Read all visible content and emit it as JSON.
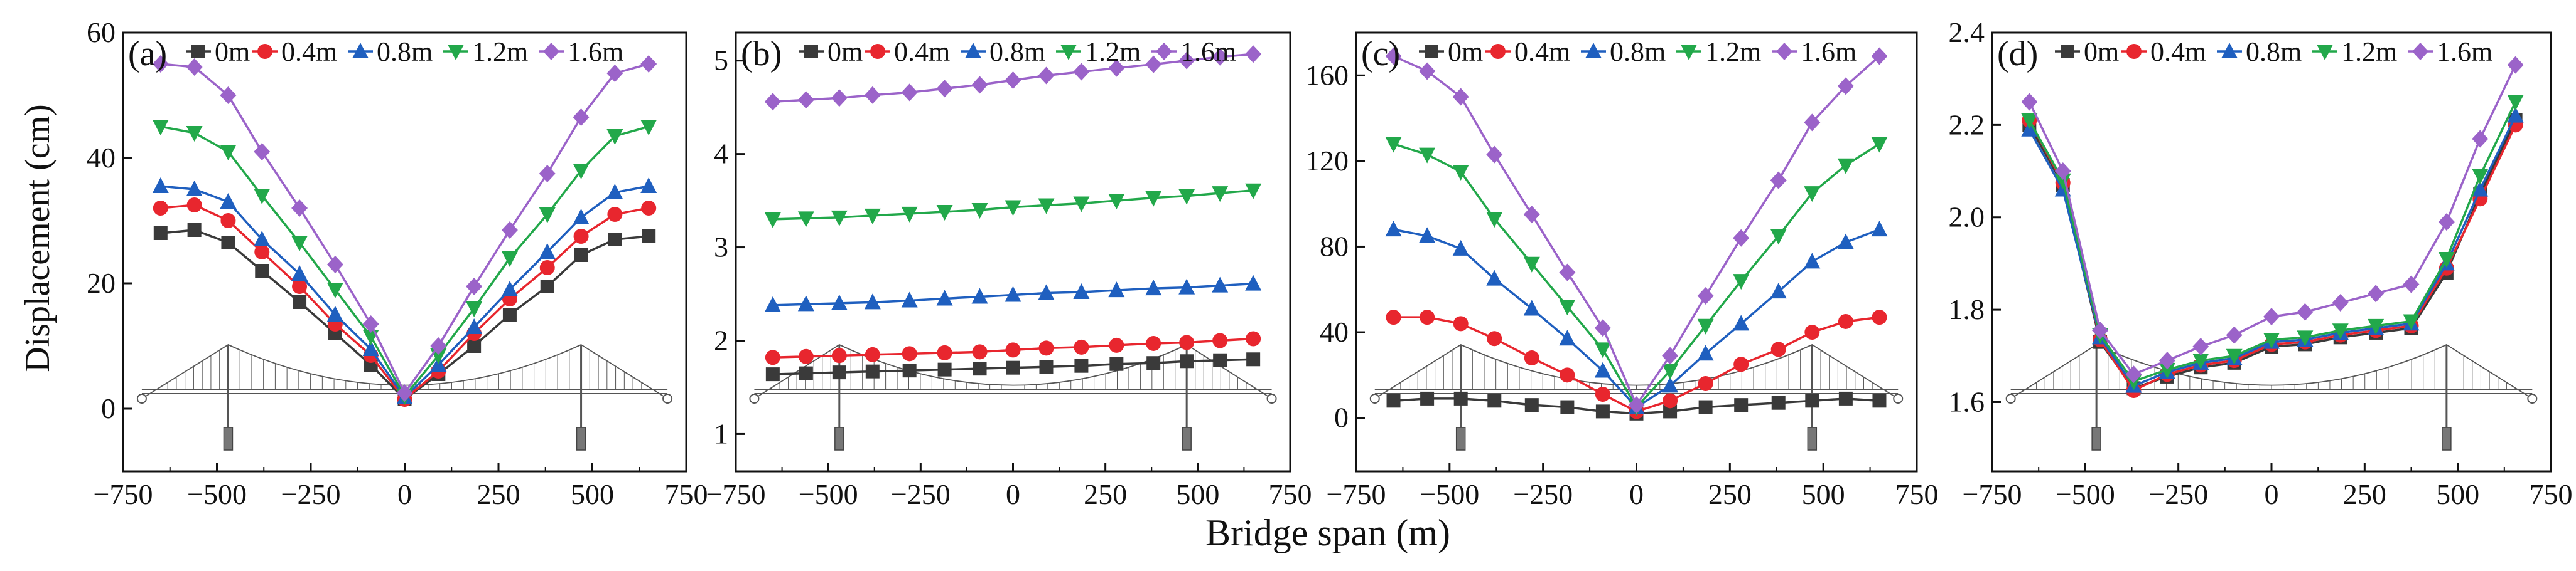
{
  "figure": {
    "ylabel": "Displacement (cm)",
    "xlabel": "Bridge span (m)",
    "x_ticks": [
      "−750",
      "−500",
      "−250",
      "0",
      "250",
      "500",
      "750"
    ],
    "x_tick_values": [
      -750,
      -500,
      -250,
      0,
      250,
      500,
      750
    ],
    "colors": [
      "#3a3a3a",
      "#e8262e",
      "#1f5fbf",
      "#22a84a",
      "#9b63c9"
    ]
  },
  "chart_data": [
    {
      "type": "line",
      "panel_label": "(a)",
      "title": "",
      "xlim": [
        -750,
        750
      ],
      "ylim": [
        -10,
        60
      ],
      "y_ticks": [
        "0",
        "20",
        "40",
        "60"
      ],
      "y_tick_values": [
        0,
        20,
        40,
        60
      ],
      "legend": [
        "0m",
        "0.4m",
        "0.8m",
        "1.2m",
        "1.6m"
      ],
      "x": [
        -650,
        -560,
        -470,
        -380,
        -280,
        -185,
        -90,
        0,
        90,
        185,
        280,
        380,
        470,
        560,
        650
      ],
      "series": [
        {
          "name": "0m",
          "marker": "square",
          "values": [
            28,
            28.5,
            26.5,
            22,
            17,
            12,
            7,
            1.5,
            5.5,
            10,
            15,
            19.5,
            24.5,
            27,
            27.5
          ]
        },
        {
          "name": "0.4m",
          "marker": "circle",
          "values": [
            32,
            32.5,
            30,
            25,
            19.5,
            13.5,
            8.5,
            1.5,
            6,
            12,
            17.5,
            22.5,
            27.5,
            31,
            32
          ]
        },
        {
          "name": "0.8m",
          "marker": "triangle",
          "values": [
            35.5,
            35,
            33,
            27,
            21.5,
            15,
            9.5,
            1.8,
            7,
            13,
            19,
            25,
            30.5,
            34.5,
            35.5
          ]
        },
        {
          "name": "1.2m",
          "marker": "tri-down",
          "values": [
            45,
            44,
            41,
            34,
            26.5,
            19,
            11.5,
            2,
            8.5,
            16,
            24,
            31,
            38,
            43.5,
            45
          ]
        },
        {
          "name": "1.6m",
          "marker": "diamond",
          "values": [
            55,
            54.5,
            50,
            41,
            32,
            23,
            13.5,
            2.5,
            10,
            19.5,
            28.5,
            37.5,
            46.5,
            53.5,
            55
          ]
        }
      ]
    },
    {
      "type": "line",
      "panel_label": "(b)",
      "title": "",
      "xlim": [
        -750,
        750
      ],
      "ylim": [
        0.6,
        5.3
      ],
      "y_ticks": [
        "1",
        "2",
        "3",
        "4",
        "5"
      ],
      "y_tick_values": [
        1,
        2,
        3,
        4,
        5
      ],
      "legend": [
        "0m",
        "0.4m",
        "0.8m",
        "1.2m",
        "1.6m"
      ],
      "x": [
        -650,
        -560,
        -470,
        -380,
        -280,
        -185,
        -90,
        0,
        90,
        185,
        280,
        380,
        470,
        560,
        650
      ],
      "series": [
        {
          "name": "0m",
          "marker": "square",
          "values": [
            1.64,
            1.65,
            1.66,
            1.67,
            1.68,
            1.69,
            1.7,
            1.71,
            1.72,
            1.73,
            1.75,
            1.76,
            1.78,
            1.79,
            1.8
          ]
        },
        {
          "name": "0.4m",
          "marker": "circle",
          "values": [
            1.82,
            1.83,
            1.84,
            1.85,
            1.86,
            1.87,
            1.88,
            1.9,
            1.92,
            1.93,
            1.95,
            1.97,
            1.98,
            2.0,
            2.02
          ]
        },
        {
          "name": "0.8m",
          "marker": "triangle",
          "values": [
            2.38,
            2.39,
            2.4,
            2.41,
            2.43,
            2.45,
            2.47,
            2.49,
            2.51,
            2.52,
            2.54,
            2.56,
            2.57,
            2.59,
            2.61
          ]
        },
        {
          "name": "1.2m",
          "marker": "tri-down",
          "values": [
            3.3,
            3.31,
            3.32,
            3.34,
            3.36,
            3.38,
            3.4,
            3.43,
            3.45,
            3.47,
            3.5,
            3.53,
            3.55,
            3.58,
            3.61
          ]
        },
        {
          "name": "1.6m",
          "marker": "diamond",
          "values": [
            4.56,
            4.58,
            4.6,
            4.63,
            4.66,
            4.7,
            4.74,
            4.79,
            4.84,
            4.88,
            4.92,
            4.96,
            5.0,
            5.04,
            5.07
          ]
        }
      ]
    },
    {
      "type": "line",
      "panel_label": "(c)",
      "title": "",
      "xlim": [
        -750,
        750
      ],
      "ylim": [
        -25,
        180
      ],
      "y_ticks": [
        "0",
        "40",
        "80",
        "120",
        "160"
      ],
      "y_tick_values": [
        0,
        40,
        80,
        120,
        160
      ],
      "legend": [
        "0m",
        "0.4m",
        "0.8m",
        "1.2m",
        "1.6m"
      ],
      "x": [
        -650,
        -560,
        -470,
        -380,
        -280,
        -185,
        -90,
        0,
        90,
        185,
        280,
        380,
        470,
        560,
        650
      ],
      "series": [
        {
          "name": "0m",
          "marker": "square",
          "values": [
            8,
            9,
            9,
            8,
            6,
            5,
            3,
            2,
            3,
            5,
            6,
            7,
            8,
            9,
            8
          ]
        },
        {
          "name": "0.4m",
          "marker": "circle",
          "values": [
            47,
            47,
            44,
            37,
            28,
            20,
            11,
            3,
            8,
            16,
            25,
            32,
            40,
            45,
            47
          ]
        },
        {
          "name": "0.8m",
          "marker": "triangle",
          "values": [
            88,
            85,
            79,
            65,
            51,
            37,
            22,
            5,
            15,
            30,
            44,
            59,
            73,
            82,
            88
          ]
        },
        {
          "name": "1.2m",
          "marker": "tri-down",
          "values": [
            128,
            123,
            115,
            93,
            72,
            52,
            32,
            5,
            22,
            43,
            64,
            85,
            105,
            118,
            128
          ]
        },
        {
          "name": "1.6m",
          "marker": "diamond",
          "values": [
            169,
            162,
            150,
            123,
            95,
            68,
            42,
            6,
            29,
            57,
            84,
            111,
            138,
            155,
            169
          ]
        }
      ]
    },
    {
      "type": "line",
      "panel_label": "(d)",
      "title": "",
      "xlim": [
        -750,
        750
      ],
      "ylim": [
        1.45,
        2.4
      ],
      "y_ticks": [
        "1.6",
        "1.8",
        "2.0",
        "2.2",
        "2.4"
      ],
      "y_tick_values": [
        1.6,
        1.8,
        2.0,
        2.2,
        2.4
      ],
      "legend": [
        "0m",
        "0.4m",
        "0.8m",
        "1.2m",
        "1.6m"
      ],
      "x": [
        -650,
        -560,
        -460,
        -370,
        -280,
        -190,
        -100,
        0,
        90,
        185,
        280,
        375,
        470,
        560,
        655
      ],
      "series": [
        {
          "name": "0m",
          "marker": "square",
          "values": [
            2.2,
            2.07,
            1.73,
            1.63,
            1.655,
            1.675,
            1.685,
            1.72,
            1.725,
            1.74,
            1.75,
            1.76,
            1.88,
            2.05,
            2.21
          ]
        },
        {
          "name": "0.4m",
          "marker": "circle",
          "values": [
            2.21,
            2.075,
            1.735,
            1.625,
            1.66,
            1.68,
            1.69,
            1.725,
            1.73,
            1.745,
            1.755,
            1.765,
            1.89,
            2.04,
            2.2
          ]
        },
        {
          "name": "0.8m",
          "marker": "triangle",
          "values": [
            2.19,
            2.06,
            1.74,
            1.635,
            1.665,
            1.685,
            1.695,
            1.73,
            1.735,
            1.75,
            1.76,
            1.77,
            1.9,
            2.06,
            2.22
          ]
        },
        {
          "name": "1.2m",
          "marker": "tri-down",
          "values": [
            2.21,
            2.08,
            1.745,
            1.645,
            1.67,
            1.69,
            1.7,
            1.735,
            1.74,
            1.755,
            1.765,
            1.775,
            1.91,
            2.09,
            2.25
          ]
        },
        {
          "name": "1.6m",
          "marker": "diamond",
          "values": [
            2.25,
            2.1,
            1.755,
            1.66,
            1.69,
            1.72,
            1.745,
            1.785,
            1.795,
            1.815,
            1.835,
            1.855,
            1.99,
            2.17,
            2.33
          ]
        }
      ]
    }
  ]
}
